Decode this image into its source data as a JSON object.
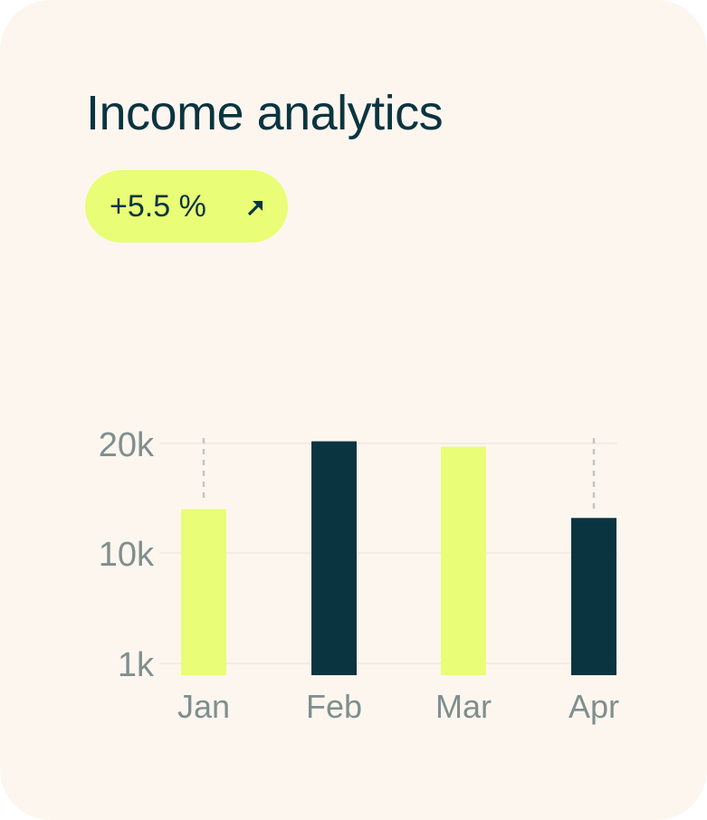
{
  "card": {
    "title": "Income analytics",
    "badge": {
      "text": "+5.5 %",
      "icon": "arrow-up-right-icon",
      "color": "#e9fd76"
    }
  },
  "colors": {
    "background": "#fcf6ef",
    "primary": "#0a3440",
    "accent": "#e9fd76",
    "muted": "#7f8f8e"
  },
  "chart_data": {
    "type": "bar",
    "title": "",
    "xlabel": "",
    "ylabel": "",
    "categories": [
      "Jan",
      "Feb",
      "Mar",
      "Apr"
    ],
    "values": [
      14000,
      20200,
      19700,
      13200
    ],
    "bar_colors": [
      "#e9fd76",
      "#0a3440",
      "#e9fd76",
      "#0a3440"
    ],
    "y_ticks": [
      {
        "value": 1000,
        "label": "1k"
      },
      {
        "value": 10000,
        "label": "10k"
      },
      {
        "value": 20000,
        "label": "20k"
      }
    ],
    "ylim": [
      0,
      20000
    ],
    "grid": true,
    "legend": "none"
  }
}
